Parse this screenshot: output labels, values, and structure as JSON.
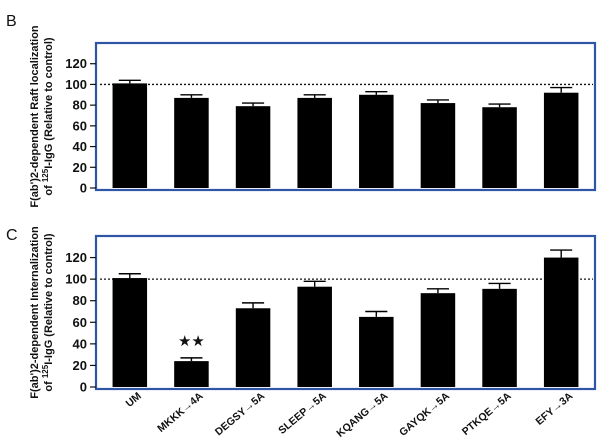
{
  "chart_data": [
    {
      "type": "bar",
      "panel_label": "B",
      "ylabel_line1": "F(ab')2-dependent Raft localization",
      "ylabel_line2_pre": "of ",
      "ylabel_line2_sup": "125",
      "ylabel_line2_post": "I-IgG (Relative to control)",
      "ylim": [
        0,
        140
      ],
      "yticks": [
        "0",
        "20",
        "40",
        "60",
        "80",
        "100",
        "120"
      ],
      "reference_line": 100,
      "categories": [
        "UM",
        "MKKK→4A",
        "DEGSY→5A",
        "SLEEP→5A",
        "KQANG→5A",
        "GAYQK→5A",
        "PTKQE→5A",
        "EFY→3A"
      ],
      "values": [
        101,
        87,
        79,
        87,
        90,
        82,
        78,
        92
      ],
      "errors": [
        3,
        3,
        3,
        3,
        3,
        3,
        3,
        5
      ],
      "show_category_labels": false,
      "colors": {
        "bar": "#000000",
        "frame": "#2f55a5"
      }
    },
    {
      "type": "bar",
      "panel_label": "C",
      "ylabel_line1": "F(ab')2-dependent Internalization",
      "ylabel_line2_pre": "of ",
      "ylabel_line2_sup": "125",
      "ylabel_line2_post": "I-IgG (Relative to control)",
      "ylim": [
        0,
        140
      ],
      "yticks": [
        "0",
        "20",
        "40",
        "60",
        "80",
        "100",
        "120"
      ],
      "reference_line": 100,
      "categories": [
        "UM",
        "MKKK→4A",
        "DEGSY→5A",
        "SLEEP→5A",
        "KQANG→5A",
        "GAYQK→5A",
        "PTKQE→5A",
        "EFY→3A"
      ],
      "values": [
        101,
        24,
        73,
        93,
        65,
        87,
        91,
        120
      ],
      "errors": [
        4,
        3,
        5,
        5,
        5,
        4,
        5,
        7
      ],
      "annotations": [
        {
          "category": "MKKK→4A",
          "text": "★★"
        }
      ],
      "show_category_labels": true,
      "colors": {
        "bar": "#000000",
        "frame": "#2f55a5"
      }
    }
  ]
}
